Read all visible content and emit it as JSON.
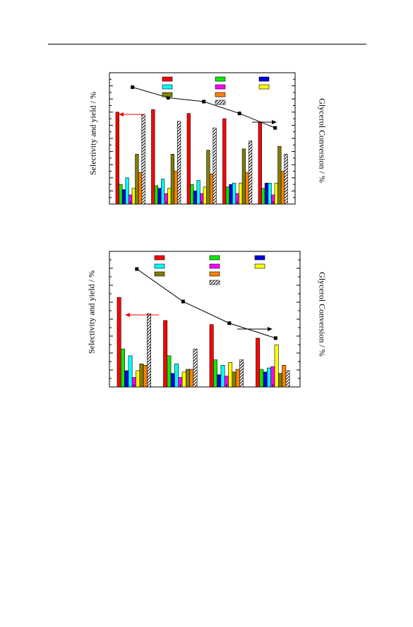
{
  "colors": {
    "s1": "#ff0000",
    "s2": "#00ee00",
    "s3": "#0000dd",
    "s4": "#00ffff",
    "s5": "#ff00ff",
    "s6": "#ffff00",
    "s7": "#808000",
    "s8": "#ff8000",
    "s9": "#a0205a",
    "arrow_left": "#ff0000",
    "arrow_right": "#000000"
  },
  "chart_data": [
    {
      "type": "bar",
      "ylabel": "Selectivity and yield / %",
      "y2label": "Glycerol Conversion  / %",
      "series": [
        {
          "values": [
            70,
            72,
            69,
            65,
            62
          ]
        },
        {
          "values": [
            15,
            14,
            15,
            13,
            12
          ]
        },
        {
          "values": [
            11,
            12,
            10,
            15,
            16
          ]
        },
        {
          "values": [
            20,
            19,
            18,
            16,
            16
          ]
        },
        {
          "values": [
            7,
            8,
            8,
            8,
            7
          ]
        },
        {
          "values": [
            12,
            12,
            13,
            16,
            16
          ]
        },
        {
          "values": [
            38,
            38,
            41,
            42,
            44
          ]
        },
        {
          "values": [
            24,
            25,
            23,
            24,
            25
          ]
        },
        {
          "values": [
            68,
            63,
            58,
            48,
            38
          ]
        }
      ],
      "conversion": [
        89,
        81,
        78,
        69,
        58
      ],
      "ylim": [
        0,
        100
      ],
      "y2lim": [
        0,
        100
      ],
      "grid": false,
      "legend": "top",
      "hatched_series": [
        8
      ]
    },
    {
      "type": "bar",
      "ylabel": "Selectivity and yield / %",
      "y2label": "Glycerol Conversion  / %",
      "series": [
        {
          "values": [
            66,
            49,
            46,
            36
          ]
        },
        {
          "values": [
            28,
            23,
            20,
            13
          ]
        },
        {
          "values": [
            12,
            10,
            9,
            11
          ]
        },
        {
          "values": [
            23,
            17,
            16,
            14
          ]
        },
        {
          "values": [
            7,
            7,
            8,
            15
          ]
        },
        {
          "values": [
            12,
            11,
            18,
            31
          ]
        },
        {
          "values": [
            17,
            13,
            11,
            10
          ]
        },
        {
          "values": [
            16,
            13,
            13,
            16
          ]
        },
        {
          "values": [
            54,
            28,
            20,
            12
          ]
        }
      ],
      "conversion": [
        87,
        63,
        47,
        36
      ],
      "ylim": [
        0,
        100
      ],
      "y2lim": [
        0,
        100
      ],
      "grid": false,
      "legend": "top",
      "hatched_series": [
        8
      ]
    }
  ]
}
